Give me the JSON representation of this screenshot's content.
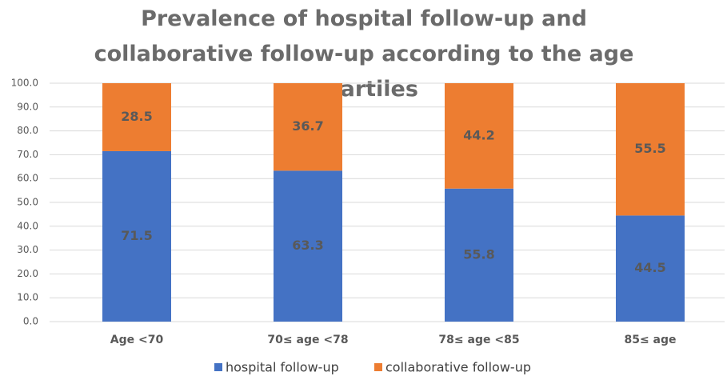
{
  "chart_data": {
    "type": "stacked_bar",
    "title": "Prevalence of hospital follow-up and collaborative follow-up according to the age quartiles",
    "categories": [
      "Age <70",
      "70≤ age <78",
      "78≤ age <85",
      "85≤ age"
    ],
    "series": [
      {
        "name": "hospital follow-up",
        "color": "#4472c4",
        "values": [
          71.5,
          63.3,
          55.8,
          44.5
        ]
      },
      {
        "name": "collaborative follow-up",
        "color": "#ed7d31",
        "values": [
          28.5,
          36.7,
          44.2,
          55.5
        ]
      }
    ],
    "ylim": [
      0,
      100
    ],
    "yticks": [
      {
        "value": 0,
        "label": "0.0"
      },
      {
        "value": 10,
        "label": "10.0"
      },
      {
        "value": 20,
        "label": "20.0"
      },
      {
        "value": 30,
        "label": "30.0"
      },
      {
        "value": 40,
        "label": "40.0"
      },
      {
        "value": 50,
        "label": "50.0"
      },
      {
        "value": 60,
        "label": "60.0"
      },
      {
        "value": 70,
        "label": "70.0"
      },
      {
        "value": 80,
        "label": "80.0"
      },
      {
        "value": 90,
        "label": "90.0"
      },
      {
        "value": 100,
        "label": "100.0"
      }
    ],
    "grid": true,
    "legend": "bottom"
  }
}
